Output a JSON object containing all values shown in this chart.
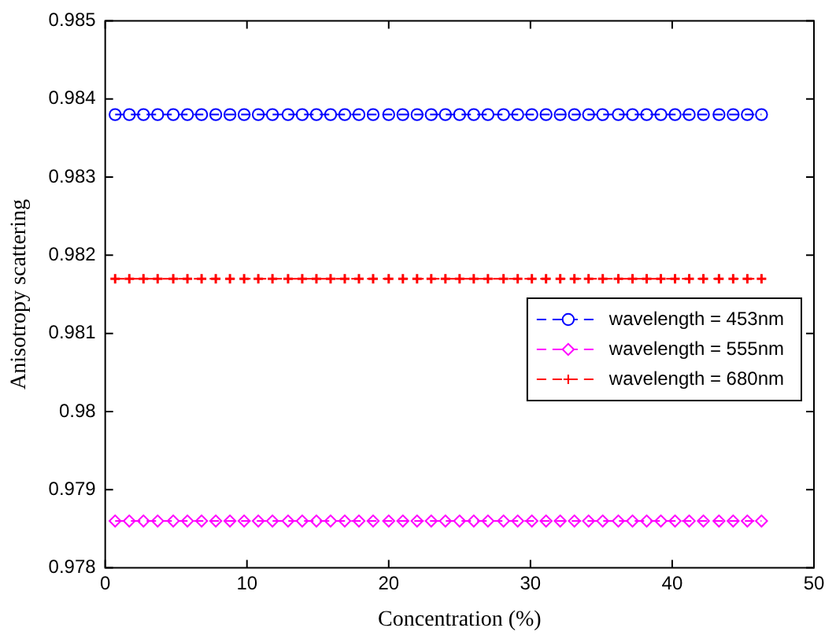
{
  "chart_data": {
    "type": "line",
    "xlabel": "Concentration (%)",
    "ylabel": "Anisotropy scattering",
    "x": [
      0.7,
      1.7,
      2.7,
      3.7,
      4.8,
      5.8,
      6.8,
      7.8,
      8.8,
      9.8,
      10.8,
      11.8,
      12.9,
      13.9,
      14.9,
      15.9,
      16.9,
      17.9,
      18.9,
      20.0,
      21.0,
      22.0,
      23.0,
      24.0,
      25.0,
      26.0,
      27.0,
      28.1,
      29.1,
      30.1,
      31.1,
      32.1,
      33.1,
      34.1,
      35.1,
      36.2,
      37.2,
      38.2,
      39.2,
      40.2,
      41.2,
      42.2,
      43.3,
      44.3,
      45.3,
      46.3
    ],
    "series": [
      {
        "name": "wavelength = 453nm",
        "color": "#0000ff",
        "marker": "circle",
        "values": [
          0.9838,
          0.9838,
          0.9838,
          0.9838,
          0.9838,
          0.9838,
          0.9838,
          0.9838,
          0.9838,
          0.9838,
          0.9838,
          0.9838,
          0.9838,
          0.9838,
          0.9838,
          0.9838,
          0.9838,
          0.9838,
          0.9838,
          0.9838,
          0.9838,
          0.9838,
          0.9838,
          0.9838,
          0.9838,
          0.9838,
          0.9838,
          0.9838,
          0.9838,
          0.9838,
          0.9838,
          0.9838,
          0.9838,
          0.9838,
          0.9838,
          0.9838,
          0.9838,
          0.9838,
          0.9838,
          0.9838,
          0.9838,
          0.9838,
          0.9838,
          0.9838,
          0.9838,
          0.9838
        ]
      },
      {
        "name": "wavelength = 555nm",
        "color": "#ff00ff",
        "marker": "diamond",
        "values": [
          0.9786,
          0.9786,
          0.9786,
          0.9786,
          0.9786,
          0.9786,
          0.9786,
          0.9786,
          0.9786,
          0.9786,
          0.9786,
          0.9786,
          0.9786,
          0.9786,
          0.9786,
          0.9786,
          0.9786,
          0.9786,
          0.9786,
          0.9786,
          0.9786,
          0.9786,
          0.9786,
          0.9786,
          0.9786,
          0.9786,
          0.9786,
          0.9786,
          0.9786,
          0.9786,
          0.9786,
          0.9786,
          0.9786,
          0.9786,
          0.9786,
          0.9786,
          0.9786,
          0.9786,
          0.9786,
          0.9786,
          0.9786,
          0.9786,
          0.9786,
          0.9786,
          0.9786,
          0.9786
        ]
      },
      {
        "name": "wavelength = 680nm",
        "color": "#ff0000",
        "marker": "cross",
        "values": [
          0.9817,
          0.9817,
          0.9817,
          0.9817,
          0.9817,
          0.9817,
          0.9817,
          0.9817,
          0.9817,
          0.9817,
          0.9817,
          0.9817,
          0.9817,
          0.9817,
          0.9817,
          0.9817,
          0.9817,
          0.9817,
          0.9817,
          0.9817,
          0.9817,
          0.9817,
          0.9817,
          0.9817,
          0.9817,
          0.9817,
          0.9817,
          0.9817,
          0.9817,
          0.9817,
          0.9817,
          0.9817,
          0.9817,
          0.9817,
          0.9817,
          0.9817,
          0.9817,
          0.9817,
          0.9817,
          0.9817,
          0.9817,
          0.9817,
          0.9817,
          0.9817,
          0.9817,
          0.9817
        ]
      }
    ],
    "xlim": [
      0,
      50
    ],
    "xticks": [
      0,
      10,
      20,
      30,
      40,
      50
    ],
    "ylim": [
      0.978,
      0.985
    ],
    "yticks": [
      0.978,
      0.979,
      0.98,
      0.981,
      0.982,
      0.983,
      0.984,
      0.985
    ],
    "grid": false,
    "legend": "right",
    "line_style": "dashed"
  }
}
